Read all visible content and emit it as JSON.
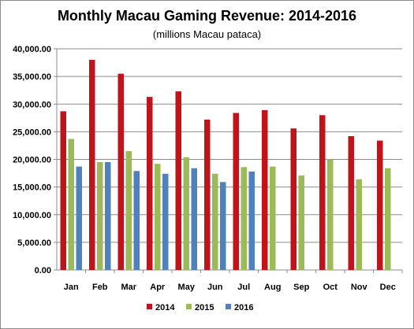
{
  "chart_data": {
    "type": "bar",
    "title": "Monthly Macau Gaming Revenue: 2014-2016",
    "subtitle": "(millions Macau pataca)",
    "categories": [
      "Jan",
      "Feb",
      "Mar",
      "Apr",
      "May",
      "Jun",
      "Jul",
      "Aug",
      "Sep",
      "Oct",
      "Nov",
      "Dec"
    ],
    "series": [
      {
        "name": "2014",
        "color": "#c0141c",
        "values": [
          28700,
          38000,
          35500,
          31300,
          32300,
          27200,
          28400,
          28900,
          25600,
          28000,
          24200,
          23400
        ]
      },
      {
        "name": "2015",
        "color": "#9bbb59",
        "values": [
          23700,
          19500,
          21500,
          19200,
          20400,
          17400,
          18600,
          18700,
          17100,
          20000,
          16400,
          18400
        ]
      },
      {
        "name": "2016",
        "color": "#4f81bd",
        "values": [
          18700,
          19500,
          17900,
          17400,
          18400,
          15900,
          17800,
          null,
          null,
          null,
          null,
          null
        ]
      }
    ],
    "ylim": [
      0,
      40000
    ],
    "yticks": [
      0,
      5000,
      10000,
      15000,
      20000,
      25000,
      30000,
      35000,
      40000
    ],
    "ytick_labels": [
      "0.00",
      "5,000.00",
      "10,000.00",
      "15,000.00",
      "20,000.00",
      "25,000.00",
      "30,000.00",
      "35,000.00",
      "40,000.00"
    ],
    "grid": true,
    "legend": "bottom"
  }
}
